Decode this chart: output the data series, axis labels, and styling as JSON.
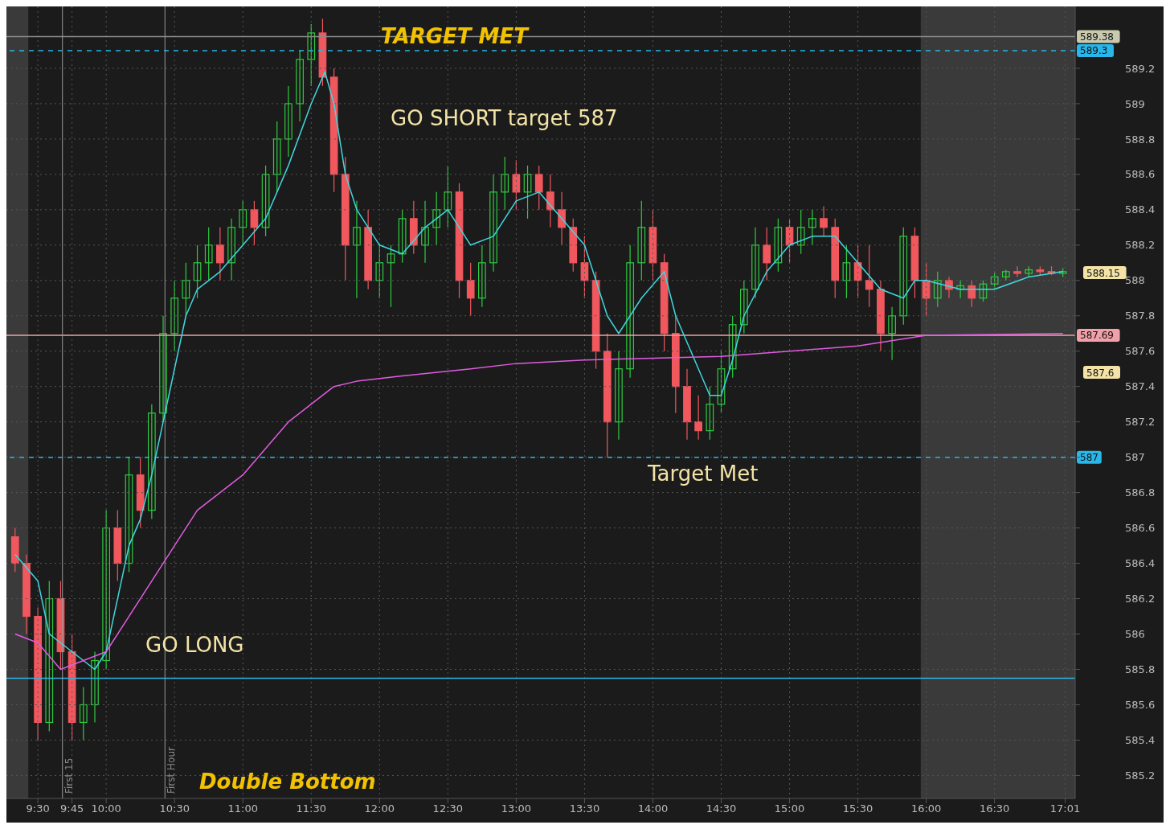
{
  "chart_data": {
    "type": "candlestick",
    "x": [
      9.3333,
      9.4167,
      9.5,
      9.5833,
      9.6667,
      9.75,
      9.8333,
      9.9167,
      10.0,
      10.0833,
      10.1667,
      10.25,
      10.3333,
      10.4167,
      10.5,
      10.5833,
      10.6667,
      10.75,
      10.8333,
      10.9167,
      11.0,
      11.0833,
      11.1667,
      11.25,
      11.3333,
      11.4167,
      11.5,
      11.5833,
      11.6667,
      11.75,
      11.8333,
      11.9167,
      12.0,
      12.0833,
      12.1667,
      12.25,
      12.3333,
      12.4167,
      12.5,
      12.5833,
      12.6667,
      12.75,
      12.8333,
      12.9167,
      13.0,
      13.0833,
      13.1667,
      13.25,
      13.3333,
      13.4167,
      13.5,
      13.5833,
      13.6667,
      13.75,
      13.8333,
      13.9167,
      14.0,
      14.0833,
      14.1667,
      14.25,
      14.3333,
      14.4167,
      14.5,
      14.5833,
      14.6667,
      14.75,
      14.8333,
      14.9167,
      15.0,
      15.0833,
      15.1667,
      15.25,
      15.3333,
      15.4167,
      15.5,
      15.5833,
      15.6667,
      15.75,
      15.8333,
      15.9167,
      16.0,
      16.0833,
      16.1667,
      16.25,
      16.3333,
      16.4167,
      16.5,
      16.5833,
      16.6667,
      16.75,
      16.8333,
      16.9167,
      17.0
    ],
    "ohlc": [
      [
        586.55,
        586.6,
        586.35,
        586.4
      ],
      [
        586.4,
        586.45,
        586.0,
        586.1
      ],
      [
        586.1,
        586.15,
        585.4,
        585.5
      ],
      [
        585.5,
        586.3,
        585.45,
        586.2
      ],
      [
        586.2,
        586.3,
        585.8,
        585.9
      ],
      [
        585.9,
        586.0,
        585.4,
        585.5
      ],
      [
        585.5,
        585.7,
        585.4,
        585.6
      ],
      [
        585.6,
        585.9,
        585.5,
        585.85
      ],
      [
        585.85,
        586.7,
        585.8,
        586.6
      ],
      [
        586.6,
        586.7,
        586.3,
        586.4
      ],
      [
        586.4,
        587.0,
        586.35,
        586.9
      ],
      [
        586.9,
        587.0,
        586.6,
        586.7
      ],
      [
        586.7,
        587.3,
        586.65,
        587.25
      ],
      [
        587.25,
        587.8,
        587.2,
        587.7
      ],
      [
        587.7,
        588.0,
        587.6,
        587.9
      ],
      [
        587.9,
        588.1,
        587.8,
        588.0
      ],
      [
        588.0,
        588.2,
        587.9,
        588.1
      ],
      [
        588.1,
        588.3,
        588.0,
        588.2
      ],
      [
        588.2,
        588.3,
        588.0,
        588.1
      ],
      [
        588.1,
        588.35,
        588.0,
        588.3
      ],
      [
        588.3,
        588.45,
        588.2,
        588.4
      ],
      [
        588.4,
        588.45,
        588.2,
        588.3
      ],
      [
        588.3,
        588.65,
        588.25,
        588.6
      ],
      [
        588.6,
        588.9,
        588.5,
        588.8
      ],
      [
        588.8,
        589.1,
        588.7,
        589.0
      ],
      [
        589.0,
        589.3,
        588.9,
        589.25
      ],
      [
        589.25,
        589.45,
        589.1,
        589.4
      ],
      [
        589.4,
        589.48,
        589.1,
        589.15
      ],
      [
        589.15,
        589.2,
        588.5,
        588.6
      ],
      [
        588.6,
        588.7,
        588.0,
        588.2
      ],
      [
        588.2,
        588.45,
        587.9,
        588.3
      ],
      [
        588.3,
        588.4,
        587.95,
        588.0
      ],
      [
        588.0,
        588.2,
        587.9,
        588.1
      ],
      [
        588.1,
        588.2,
        587.85,
        588.15
      ],
      [
        588.15,
        588.4,
        588.1,
        588.35
      ],
      [
        588.35,
        588.45,
        588.15,
        588.2
      ],
      [
        588.2,
        588.45,
        588.1,
        588.3
      ],
      [
        588.3,
        588.5,
        588.2,
        588.4
      ],
      [
        588.4,
        588.65,
        588.3,
        588.5
      ],
      [
        588.5,
        588.55,
        587.9,
        588.0
      ],
      [
        588.0,
        588.1,
        587.8,
        587.9
      ],
      [
        587.9,
        588.2,
        587.85,
        588.1
      ],
      [
        588.1,
        588.6,
        588.05,
        588.5
      ],
      [
        588.5,
        588.7,
        588.4,
        588.6
      ],
      [
        588.6,
        588.68,
        588.4,
        588.5
      ],
      [
        588.5,
        588.65,
        588.35,
        588.6
      ],
      [
        588.6,
        588.65,
        588.4,
        588.5
      ],
      [
        588.5,
        588.6,
        588.3,
        588.4
      ],
      [
        588.4,
        588.5,
        588.2,
        588.3
      ],
      [
        588.3,
        588.35,
        588.05,
        588.1
      ],
      [
        588.1,
        588.25,
        587.9,
        588.0
      ],
      [
        588.0,
        588.05,
        587.5,
        587.6
      ],
      [
        587.6,
        587.7,
        587.0,
        587.2
      ],
      [
        587.2,
        587.6,
        587.1,
        587.5
      ],
      [
        587.5,
        588.2,
        587.45,
        588.1
      ],
      [
        588.1,
        588.45,
        588.0,
        588.3
      ],
      [
        588.3,
        588.4,
        588.0,
        588.1
      ],
      [
        588.1,
        588.15,
        587.6,
        587.7
      ],
      [
        587.7,
        587.8,
        587.25,
        587.4
      ],
      [
        587.4,
        587.5,
        587.1,
        587.2
      ],
      [
        587.2,
        587.35,
        587.1,
        587.15
      ],
      [
        587.15,
        587.4,
        587.1,
        587.3
      ],
      [
        587.3,
        587.6,
        587.25,
        587.5
      ],
      [
        587.5,
        587.8,
        587.45,
        587.75
      ],
      [
        587.75,
        588.0,
        587.7,
        587.95
      ],
      [
        587.95,
        588.3,
        587.9,
        588.2
      ],
      [
        588.2,
        588.3,
        588.0,
        588.1
      ],
      [
        588.1,
        588.35,
        588.05,
        588.3
      ],
      [
        588.3,
        588.35,
        588.1,
        588.2
      ],
      [
        588.2,
        588.4,
        588.15,
        588.3
      ],
      [
        588.3,
        588.4,
        588.2,
        588.35
      ],
      [
        588.35,
        588.42,
        588.25,
        588.3
      ],
      [
        588.3,
        588.35,
        587.9,
        588.0
      ],
      [
        588.0,
        588.2,
        587.9,
        588.1
      ],
      [
        588.1,
        588.2,
        587.9,
        588.0
      ],
      [
        588.0,
        588.2,
        587.85,
        587.95
      ],
      [
        587.95,
        588.0,
        587.6,
        587.7
      ],
      [
        587.7,
        587.85,
        587.55,
        587.8
      ],
      [
        587.8,
        588.3,
        587.75,
        588.25
      ],
      [
        588.25,
        588.3,
        587.9,
        588.0
      ],
      [
        588.0,
        588.1,
        587.8,
        587.9
      ],
      [
        587.9,
        588.05,
        587.85,
        588.0
      ],
      [
        588.0,
        588.02,
        587.9,
        587.95
      ],
      [
        587.95,
        588.0,
        587.9,
        587.97
      ],
      [
        587.97,
        588.0,
        587.85,
        587.9
      ],
      [
        587.9,
        588.0,
        587.88,
        587.98
      ],
      [
        587.98,
        588.05,
        587.95,
        588.02
      ],
      [
        588.02,
        588.06,
        588.0,
        588.05
      ],
      [
        588.05,
        588.08,
        588.02,
        588.04
      ],
      [
        588.04,
        588.08,
        588.02,
        588.06
      ],
      [
        588.06,
        588.08,
        588.03,
        588.05
      ],
      [
        588.05,
        588.08,
        588.03,
        588.04
      ],
      [
        588.04,
        588.07,
        588.02,
        588.05
      ]
    ],
    "series": [
      {
        "type": "line",
        "color": "#3fd8e0",
        "x": [
          9.3333,
          9.5,
          9.5833,
          9.6667,
          9.75,
          9.8333,
          9.9167,
          10.0,
          10.0833,
          10.1667,
          10.25,
          10.3333,
          10.4167,
          10.5,
          10.5833,
          10.6667,
          10.8333,
          11.0,
          11.1667,
          11.3333,
          11.5,
          11.6,
          11.6667,
          11.75,
          11.8333,
          12.0,
          12.1667,
          12.3333,
          12.5,
          12.6667,
          12.8333,
          13.0,
          13.1667,
          13.3333,
          13.5,
          13.5833,
          13.6667,
          13.75,
          13.9167,
          14.0833,
          14.1667,
          14.3333,
          14.4167,
          14.5,
          14.5833,
          14.6667,
          14.8333,
          15.0,
          15.1667,
          15.3333,
          15.5,
          15.6667,
          15.8333,
          15.9167,
          16.0,
          16.25,
          16.5,
          16.75,
          17.0
        ],
        "values": [
          586.45,
          586.3,
          586.0,
          585.95,
          585.9,
          585.85,
          585.8,
          585.9,
          586.2,
          586.5,
          586.65,
          586.9,
          587.2,
          587.5,
          587.8,
          587.95,
          588.05,
          588.2,
          588.35,
          588.65,
          589.0,
          589.18,
          589.0,
          588.6,
          588.4,
          588.2,
          588.15,
          588.3,
          588.4,
          588.2,
          588.25,
          588.45,
          588.5,
          588.35,
          588.2,
          588.0,
          587.8,
          587.7,
          587.9,
          588.05,
          587.8,
          587.5,
          587.35,
          587.35,
          587.55,
          587.8,
          588.05,
          588.2,
          588.25,
          588.25,
          588.1,
          587.95,
          587.9,
          588.0,
          588.0,
          587.95,
          587.95,
          588.02,
          588.05
        ]
      },
      {
        "type": "line",
        "color": "#e05ce0",
        "x": [
          9.3333,
          9.5,
          9.6667,
          9.8333,
          10.0,
          10.1667,
          10.3333,
          10.5,
          10.6667,
          10.8333,
          11.0,
          11.1667,
          11.3333,
          11.5,
          11.6667,
          11.8333,
          12.1667,
          12.6667,
          13.0,
          13.5,
          14.0,
          14.5,
          15.0,
          15.5,
          15.9167,
          16.0,
          17.0
        ],
        "values": [
          586.0,
          585.95,
          585.8,
          585.85,
          585.9,
          586.1,
          586.3,
          586.5,
          586.7,
          586.8,
          586.9,
          587.05,
          587.2,
          587.3,
          587.4,
          587.43,
          587.46,
          587.5,
          587.53,
          587.55,
          587.56,
          587.57,
          587.6,
          587.63,
          587.68,
          587.69,
          587.7
        ]
      }
    ],
    "xlim": [
      9.27,
      17.09
    ],
    "xticks": [
      {
        "value": 9.5,
        "label": "9:30"
      },
      {
        "value": 9.75,
        "label": "9:45"
      },
      {
        "value": 10.0,
        "label": "10:00"
      },
      {
        "value": 10.5,
        "label": "10:30"
      },
      {
        "value": 11.0,
        "label": "11:00"
      },
      {
        "value": 11.5,
        "label": "11:30"
      },
      {
        "value": 12.0,
        "label": "12:00"
      },
      {
        "value": 12.5,
        "label": "12:30"
      },
      {
        "value": 13.0,
        "label": "13:00"
      },
      {
        "value": 13.5,
        "label": "13:30"
      },
      {
        "value": 14.0,
        "label": "14:00"
      },
      {
        "value": 14.5,
        "label": "14:30"
      },
      {
        "value": 15.0,
        "label": "15:00"
      },
      {
        "value": 15.5,
        "label": "15:30"
      },
      {
        "value": 16.0,
        "label": "16:00"
      },
      {
        "value": 16.5,
        "label": "16:30"
      },
      {
        "value": 17.0167,
        "label": "17:01"
      }
    ],
    "ylim": [
      585.07,
      589.55
    ],
    "yticks": [
      585.2,
      585.4,
      585.6,
      585.8,
      586,
      586.2,
      586.4,
      586.6,
      586.8,
      587,
      587.2,
      587.4,
      587.6,
      587.8,
      588,
      588.2,
      588.4,
      588.6,
      588.8,
      589,
      589.2
    ],
    "grid": true,
    "ref_lines": [
      {
        "axis": "y",
        "value": 589.38,
        "label": "589.38",
        "color": "#8a8a8a",
        "line_style": "solid"
      },
      {
        "axis": "y",
        "value": 589.3,
        "label": "589.3",
        "color": "#29b6e8",
        "line_style": "dashed"
      },
      {
        "axis": "y",
        "value": 587.69,
        "label": "587.69",
        "color": "#f0a0a8",
        "line_style": "solid"
      },
      {
        "axis": "y",
        "value": 587,
        "label": "587",
        "color": "#29b6e8",
        "line_style": "dashed"
      },
      {
        "axis": "y",
        "value": 585.75,
        "color": "#29b6e8",
        "line_style": "solid"
      },
      {
        "axis": "x",
        "value": 9.68,
        "label": "First 15",
        "color": "#9a9a9a",
        "line_style": "solid"
      },
      {
        "axis": "x",
        "value": 10.43,
        "label": "First Hour",
        "color": "#9a9a9a",
        "line_style": "solid"
      }
    ],
    "bands": [
      {
        "axis": "x",
        "from": 9.27,
        "to": 9.43,
        "color": "#3a3a3a"
      },
      {
        "axis": "x",
        "from": 15.96,
        "to": 17.09,
        "color": "#3a3a3a"
      }
    ],
    "annotations": [
      {
        "text": "TARGET MET",
        "x": 11.95,
        "y": 589.38
      },
      "GO SHORT target 587",
      "Target Met",
      "GO LONG",
      "Double Bottom",
      "588.15",
      "587.6"
    ]
  }
}
